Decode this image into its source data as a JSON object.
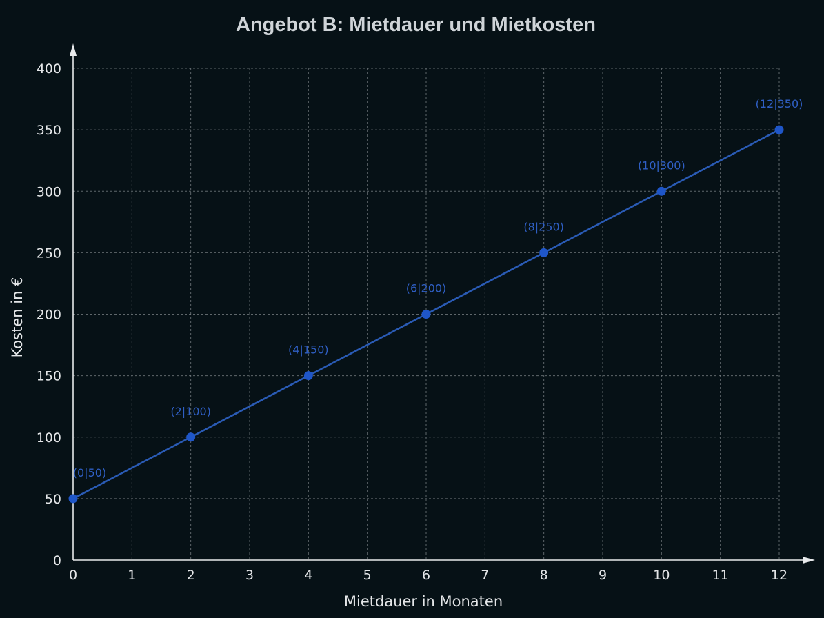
{
  "chart_data": {
    "type": "line",
    "title": "Angebot B: Mietdauer und Mietkosten",
    "xlabel": "Mietdauer in Monaten",
    "ylabel": "Kosten in €",
    "xlim": [
      0,
      12
    ],
    "ylim": [
      0,
      400
    ],
    "x_ticks": [
      0,
      1,
      2,
      3,
      4,
      5,
      6,
      7,
      8,
      9,
      10,
      11,
      12
    ],
    "y_ticks": [
      0,
      50,
      100,
      150,
      200,
      250,
      300,
      350,
      400
    ],
    "grid": true,
    "series": [
      {
        "color": "#2a5bb5",
        "marker_color": "#1f56c8",
        "label_color": "#2f5fc4",
        "points": [
          {
            "x": 0,
            "y": 50,
            "label": "(0|50)"
          },
          {
            "x": 2,
            "y": 100,
            "label": "(2|100)"
          },
          {
            "x": 4,
            "y": 150,
            "label": "(4|150)"
          },
          {
            "x": 6,
            "y": 200,
            "label": "(6|200)"
          },
          {
            "x": 8,
            "y": 250,
            "label": "(8|250)"
          },
          {
            "x": 10,
            "y": 300,
            "label": "(10|300)"
          },
          {
            "x": 12,
            "y": 350,
            "label": "(12|350)"
          }
        ]
      }
    ],
    "colors": {
      "background": "#061116",
      "axis": "#e8eaec",
      "grid": "#7d8488",
      "title": "#cfd4d8",
      "text": "#e4e6e8"
    }
  }
}
